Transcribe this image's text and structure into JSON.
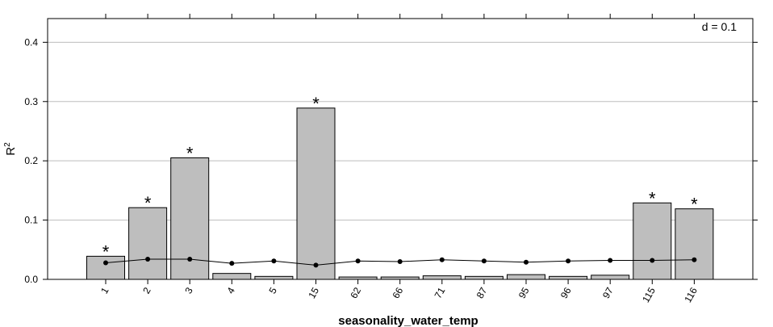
{
  "chart_data": {
    "type": "bar",
    "xlabel": "seasonality_water_temp",
    "ylabel": "R",
    "ylabel_superscript": "2",
    "annotation": "d = 0.1",
    "ylim": [
      0,
      0.44
    ],
    "yticks": [
      "0.0",
      "0.1",
      "0.2",
      "0.3",
      "0.4"
    ],
    "ytick_values": [
      0,
      0.1,
      0.2,
      0.3,
      0.4
    ],
    "grid": "horizontal",
    "categories": [
      "1",
      "2",
      "3",
      "4",
      "5",
      "15",
      "62",
      "66",
      "71",
      "87",
      "95",
      "96",
      "97",
      "115",
      "116"
    ],
    "series": [
      {
        "type": "bar",
        "values": [
          0.039,
          0.121,
          0.205,
          0.01,
          0.005,
          0.289,
          0.004,
          0.004,
          0.006,
          0.005,
          0.008,
          0.005,
          0.007,
          0.129,
          0.119
        ]
      },
      {
        "type": "line",
        "values": [
          0.028,
          0.034,
          0.034,
          0.027,
          0.031,
          0.024,
          0.031,
          0.03,
          0.033,
          0.031,
          0.029,
          0.031,
          0.032,
          0.032,
          0.033
        ]
      }
    ],
    "significant": [
      true,
      true,
      true,
      false,
      false,
      true,
      false,
      false,
      false,
      false,
      false,
      false,
      false,
      true,
      true
    ],
    "significance_marker": "*",
    "colors": {
      "bar_fill": "#bebebe",
      "bar_stroke": "#000000",
      "grid": "#bdbdbd",
      "line": "#000000"
    }
  }
}
